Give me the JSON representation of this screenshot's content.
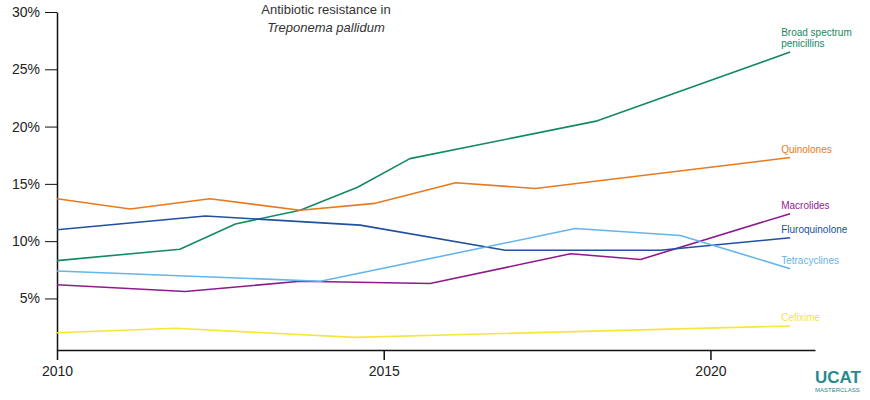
{
  "chart_data": {
    "type": "line",
    "title": "Antibiotic resistance in",
    "subtitle": "Treponema pallidum",
    "xlim": [
      2010,
      2021.6
    ],
    "xticks": [
      2010,
      2015,
      2020
    ],
    "ylim": [
      0.5,
      30
    ],
    "yticks": [
      {
        "value": 5,
        "label": "5%"
      },
      {
        "value": 10,
        "label": "10%"
      },
      {
        "value": 15,
        "label": "15%"
      },
      {
        "value": 20,
        "label": "20%"
      },
      {
        "value": 25,
        "label": "25%"
      },
      {
        "value": 30,
        "label": "30%"
      }
    ],
    "grid": false,
    "series": [
      {
        "name": "Broad spectrum penicillins",
        "color": "#138a62",
        "x": [
          2010,
          2011.88,
          2012.73,
          2013.72,
          2014.6,
          2015.4,
          2018.27,
          2021.22
        ],
        "values": [
          8.3,
          9.3,
          11.5,
          12.7,
          14.7,
          17.2,
          20.5,
          26.5
        ]
      },
      {
        "name": "Quinolones",
        "color": "#e8791c",
        "x": [
          2010,
          2011.12,
          2012.34,
          2013.72,
          2014.87,
          2016.1,
          2017.32,
          2021.22
        ],
        "values": [
          13.7,
          12.8,
          13.7,
          12.7,
          13.3,
          15.1,
          14.6,
          17.3
        ]
      },
      {
        "name": "Macrolides",
        "color": "#8e1b8e",
        "x": [
          2010,
          2011.96,
          2013.72,
          2015.71,
          2017.86,
          2018.93,
          2021.22
        ],
        "values": [
          6.2,
          5.6,
          6.5,
          6.3,
          8.9,
          8.4,
          12.4
        ]
      },
      {
        "name": "Fluroquinolone",
        "color": "#2150a0",
        "x": [
          2010,
          2012.27,
          2014.64,
          2016.86,
          2019.23,
          2021.22
        ],
        "values": [
          11.0,
          12.2,
          11.4,
          9.2,
          9.2,
          10.3
        ]
      },
      {
        "name": "Tetracyclines",
        "color": "#64b5ec",
        "x": [
          2010,
          2014.03,
          2017.93,
          2019.54,
          2021.22
        ],
        "values": [
          7.4,
          6.5,
          11.1,
          10.5,
          7.6
        ]
      },
      {
        "name": "Cefixime",
        "color": "#f5e63c",
        "x": [
          2010,
          2011.81,
          2014.56,
          2021.22
        ],
        "values": [
          2.0,
          2.4,
          1.6,
          2.6
        ]
      }
    ],
    "annotations": [
      "UCAT",
      "MASTERCLASS"
    ]
  }
}
